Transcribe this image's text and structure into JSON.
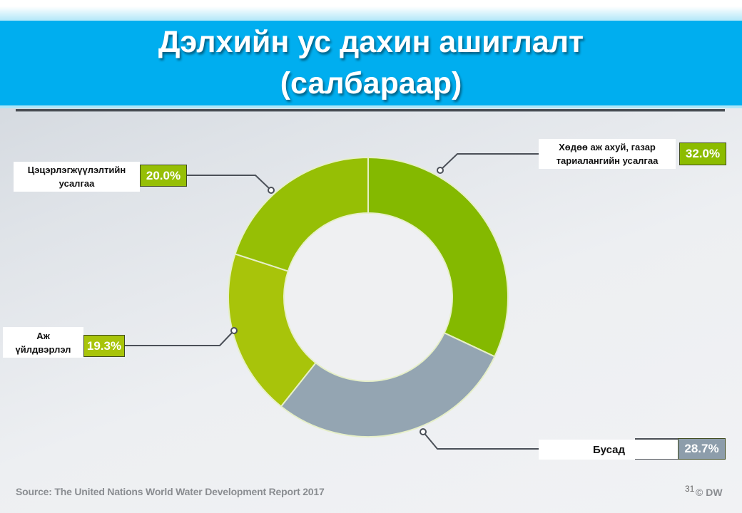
{
  "slide": {
    "title_line1": "Дэлхийн ус дахин ашиглалт",
    "title_line2": "(салбараар)",
    "source": "Source: The United Nations World Water Development Report 2017",
    "page_number": "31",
    "brand": "© DW"
  },
  "colors": {
    "title_band": "#00aeef",
    "agriculture": "#84b900",
    "other": "#94a5b2",
    "industry": "#a8c40a",
    "landscaping": "#96bf05",
    "pct_green": "#8cbc00",
    "pct_grey": "#8d9dab"
  },
  "labels": {
    "agriculture": {
      "name": "Хөдөө аж ахуй, газар тариалангийн усалгаа",
      "line1": "Хөдөө аж ахуй, газар",
      "line2": "тариалангийн усалгаа",
      "pct": "32.0%"
    },
    "other": {
      "name": "Бусад",
      "line1": "Бусад",
      "pct": "28.7%"
    },
    "industry": {
      "name": "Аж үйлдвэрлэл",
      "line1": "Аж",
      "line2": "үйлдвэрлэл",
      "pct": "19.3%"
    },
    "landscaping": {
      "name": "Цэцэрлэгжүүлэлтийн усалгаа",
      "line1": "Цэцэрлэгжүүлэлтийн",
      "line2": "усалгаа",
      "pct": "20.0%"
    }
  },
  "chart_data": {
    "type": "pie",
    "subtype": "donut",
    "title": "Дэлхийн ус дахин ашиглалт (салбараар)",
    "categories": [
      "Хөдөө аж ахуй, газар тариалангийн усалгаа",
      "Бусад",
      "Аж үйлдвэрлэл",
      "Цэцэрлэгжүүлэлтийн усалгаа"
    ],
    "values": [
      32.0,
      28.7,
      19.3,
      20.0
    ],
    "unit": "%",
    "start_angle": "12 o'clock, clockwise",
    "colors": [
      "#84b900",
      "#94a5b2",
      "#a8c40a",
      "#96bf05"
    ],
    "legend": "callout labels",
    "source": "Source: The United Nations World Water Development Report 2017"
  }
}
